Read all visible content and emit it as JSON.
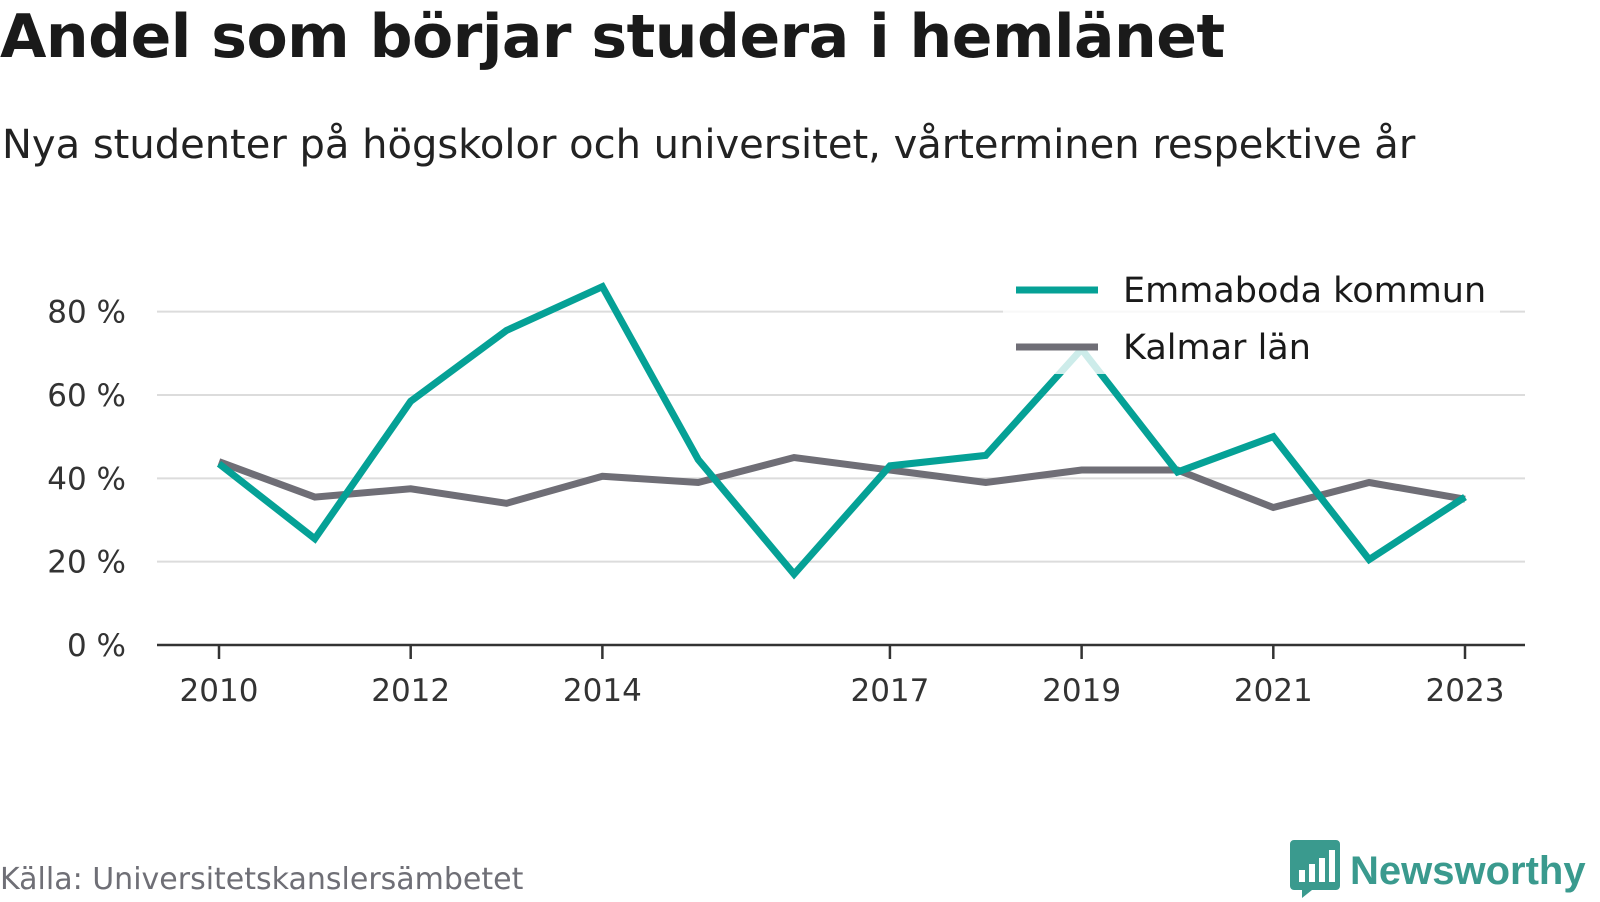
{
  "chart_data": {
    "type": "line",
    "title": "Andel som börjar studera i hemlänet",
    "subtitle": "Nya studenter på högskolor och universitet, vårterminen respektive år",
    "x": [
      2010,
      2011,
      2012,
      2013,
      2014,
      2015,
      2016,
      2017,
      2018,
      2019,
      2020,
      2021,
      2022,
      2023
    ],
    "x_tick_labels": [
      "2010",
      "2012",
      "2014",
      "2017",
      "2019",
      "2021",
      "2023"
    ],
    "y_tick_labels": [
      "0 %",
      "20 %",
      "40 %",
      "60 %",
      "80 %"
    ],
    "ylim": [
      0,
      90
    ],
    "grid": true,
    "legend_position": "top-right",
    "series": [
      {
        "name": "Emmaboda kommun",
        "color": "#05a196",
        "values": [
          43.5,
          25.5,
          58.5,
          75.5,
          86,
          44.5,
          17,
          43,
          45.5,
          71,
          41.5,
          50,
          20.5,
          35.5
        ]
      },
      {
        "name": "Kalmar län",
        "color": "#6f6e76",
        "values": [
          44,
          35.5,
          37.5,
          34,
          40.5,
          39,
          45,
          42,
          39,
          42,
          42,
          33,
          39,
          35
        ]
      }
    ]
  },
  "source": "Källa: Universitetskanslersämbetet",
  "brand": "Newsworthy",
  "brand_icon": "bar-chart-icon"
}
